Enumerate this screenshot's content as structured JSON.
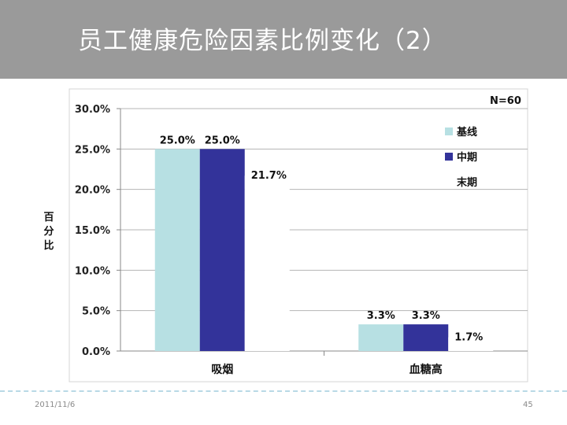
{
  "slide": {
    "title": "员工健康危险因素比例变化（2）",
    "date": "2011/11/6",
    "page_number": "45"
  },
  "chart_data": {
    "type": "bar",
    "annotation": "N=60",
    "ylabel": "百分比",
    "ylim": [
      0,
      30
    ],
    "yticks": [
      "0.0%",
      "5.0%",
      "10.0%",
      "15.0%",
      "20.0%",
      "25.0%",
      "30.0%"
    ],
    "categories": [
      "吸烟",
      "血糖高"
    ],
    "series": [
      {
        "name": "基线",
        "color": "#b7e0e3",
        "values": [
          25.0,
          3.3
        ],
        "labels": [
          "25.0%",
          "3.3%"
        ]
      },
      {
        "name": "中期",
        "color": "#33339a",
        "values": [
          25.0,
          3.3
        ],
        "labels": [
          "25.0%",
          "3.3%"
        ]
      },
      {
        "name": "末期",
        "color": "#ffffff",
        "values": [
          21.7,
          1.7
        ],
        "labels": [
          "21.7%",
          "1.7%"
        ]
      }
    ],
    "legend_position": "right",
    "grid": true
  }
}
